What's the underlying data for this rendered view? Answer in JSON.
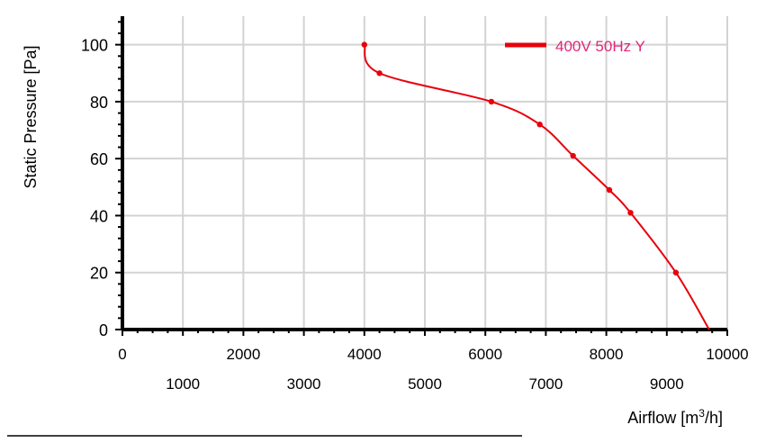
{
  "chart_data": {
    "type": "line",
    "title": "",
    "xlabel": "Airflow [m³/h]",
    "ylabel": "Static Pressure [Pa]",
    "xlim": [
      0,
      10000
    ],
    "ylim": [
      0,
      110
    ],
    "grid": true,
    "legend_position": "top-right",
    "x_ticks_upper": [
      "0",
      "2000",
      "4000",
      "6000",
      "8000",
      "10000"
    ],
    "x_ticks_lower": [
      "1000",
      "3000",
      "5000",
      "7000",
      "9000"
    ],
    "y_ticks": [
      "0",
      "20",
      "40",
      "60",
      "80",
      "100"
    ],
    "series": [
      {
        "name": "400V 50Hz Y",
        "color": "#e8000b",
        "points": [
          {
            "x": 4000,
            "y": 100
          },
          {
            "x": 4250,
            "y": 90
          },
          {
            "x": 6100,
            "y": 80
          },
          {
            "x": 6900,
            "y": 72
          },
          {
            "x": 7450,
            "y": 61
          },
          {
            "x": 8050,
            "y": 49
          },
          {
            "x": 8400,
            "y": 41
          },
          {
            "x": 9150,
            "y": 20
          },
          {
            "x": 9700,
            "y": 0
          }
        ]
      }
    ],
    "legend_text_color": "#e0287a"
  }
}
